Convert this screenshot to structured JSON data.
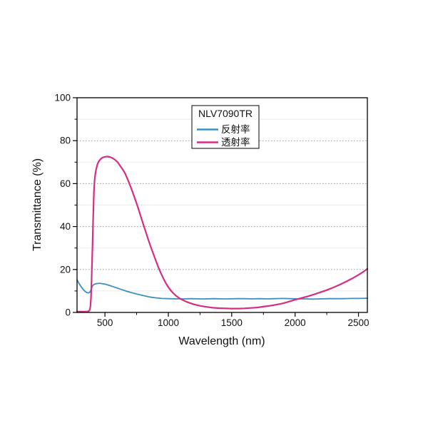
{
  "figure": {
    "background": "#ffffff",
    "frame_color": "#000000"
  },
  "chart_data": {
    "type": "line",
    "title": "NLV7090TR",
    "xlabel": "Wavelength (nm)",
    "ylabel": "Transmittance (%)",
    "xlim": [
      280,
      2570
    ],
    "ylim": [
      0,
      100
    ],
    "x_major_ticks": [
      500,
      1000,
      1500,
      2000,
      2500
    ],
    "x_major_tick_labels": [
      "500",
      "1000",
      "1500",
      "2000",
      "2500"
    ],
    "x_minor_ticks": [
      750,
      1250,
      1750,
      2250
    ],
    "y_major_ticks": [
      0,
      20,
      40,
      60,
      80,
      100
    ],
    "y_major_tick_labels": [
      "0",
      "20",
      "40",
      "60",
      "80",
      "100"
    ],
    "y_minor_ticks": [
      10,
      30,
      50,
      70,
      90
    ],
    "grid": {
      "horizontal_major": "dashed",
      "horizontal_major_color": "#9a9a9a",
      "horizontal_minor": "solid-faint",
      "horizontal_minor_color": "#ebebeb",
      "vertical": false
    },
    "legend": {
      "title": "NLV7090TR",
      "position": "upper-center",
      "border_color": "#000000",
      "entries": [
        {
          "label": "反射率",
          "color": "#3f90bd"
        },
        {
          "label": "透射率",
          "color": "#d62d80"
        }
      ]
    },
    "series": [
      {
        "name": "反射率",
        "color": "#3f90bd",
        "width": 1.8,
        "points": [
          [
            280,
            15.2
          ],
          [
            290,
            14.1
          ],
          [
            300,
            13.1
          ],
          [
            310,
            12.2
          ],
          [
            320,
            11.4
          ],
          [
            330,
            10.6
          ],
          [
            340,
            10.0
          ],
          [
            350,
            9.5
          ],
          [
            360,
            9.2
          ],
          [
            370,
            9.1
          ],
          [
            380,
            9.4
          ],
          [
            388,
            10.2
          ],
          [
            394,
            11.2
          ],
          [
            400,
            12.2
          ],
          [
            408,
            12.8
          ],
          [
            416,
            13.1
          ],
          [
            430,
            13.4
          ],
          [
            445,
            13.5
          ],
          [
            460,
            13.6
          ],
          [
            480,
            13.4
          ],
          [
            500,
            13.2
          ],
          [
            540,
            12.5
          ],
          [
            580,
            11.7
          ],
          [
            620,
            10.9
          ],
          [
            660,
            10.1
          ],
          [
            700,
            9.4
          ],
          [
            750,
            8.6
          ],
          [
            800,
            7.9
          ],
          [
            850,
            7.2
          ],
          [
            900,
            6.8
          ],
          [
            950,
            6.5
          ],
          [
            1000,
            6.4
          ],
          [
            1060,
            6.3
          ],
          [
            1120,
            6.3
          ],
          [
            1180,
            6.4
          ],
          [
            1240,
            6.3
          ],
          [
            1300,
            6.3
          ],
          [
            1360,
            6.4
          ],
          [
            1420,
            6.3
          ],
          [
            1480,
            6.3
          ],
          [
            1540,
            6.4
          ],
          [
            1600,
            6.4
          ],
          [
            1660,
            6.3
          ],
          [
            1720,
            6.4
          ],
          [
            1780,
            6.3
          ],
          [
            1840,
            6.4
          ],
          [
            1900,
            6.5
          ],
          [
            1960,
            6.4
          ],
          [
            2020,
            6.3
          ],
          [
            2080,
            6.3
          ],
          [
            2140,
            6.2
          ],
          [
            2200,
            6.3
          ],
          [
            2260,
            6.4
          ],
          [
            2320,
            6.4
          ],
          [
            2380,
            6.4
          ],
          [
            2440,
            6.5
          ],
          [
            2500,
            6.5
          ],
          [
            2570,
            6.6
          ]
        ]
      },
      {
        "name": "透射率",
        "color": "#d62d80",
        "width": 2.2,
        "points": [
          [
            280,
            0.4
          ],
          [
            300,
            0.4
          ],
          [
            320,
            0.4
          ],
          [
            340,
            0.4
          ],
          [
            355,
            0.4
          ],
          [
            365,
            0.5
          ],
          [
            375,
            0.7
          ],
          [
            382,
            1.5
          ],
          [
            386,
            3.0
          ],
          [
            390,
            7.0
          ],
          [
            393,
            12.0
          ],
          [
            396,
            18.0
          ],
          [
            399,
            24.0
          ],
          [
            402,
            31.0
          ],
          [
            405,
            38.0
          ],
          [
            408,
            45.0
          ],
          [
            411,
            52.0
          ],
          [
            414,
            57.0
          ],
          [
            418,
            61.0
          ],
          [
            423,
            64.0
          ],
          [
            430,
            66.5
          ],
          [
            440,
            68.8
          ],
          [
            450,
            70.2
          ],
          [
            465,
            71.4
          ],
          [
            480,
            72.1
          ],
          [
            500,
            72.5
          ],
          [
            520,
            72.6
          ],
          [
            540,
            72.4
          ],
          [
            560,
            71.9
          ],
          [
            580,
            71.1
          ],
          [
            600,
            70.0
          ],
          [
            620,
            68.3
          ],
          [
            640,
            66.6
          ],
          [
            660,
            64.7
          ],
          [
            680,
            61.9
          ],
          [
            700,
            59.0
          ],
          [
            720,
            55.8
          ],
          [
            740,
            52.4
          ],
          [
            760,
            49.0
          ],
          [
            780,
            45.2
          ],
          [
            800,
            41.5
          ],
          [
            820,
            37.9
          ],
          [
            840,
            34.3
          ],
          [
            860,
            30.8
          ],
          [
            880,
            27.6
          ],
          [
            900,
            24.4
          ],
          [
            920,
            21.3
          ],
          [
            940,
            18.5
          ],
          [
            960,
            15.9
          ],
          [
            980,
            13.7
          ],
          [
            1000,
            11.8
          ],
          [
            1020,
            10.2
          ],
          [
            1040,
            8.9
          ],
          [
            1060,
            7.8
          ],
          [
            1080,
            6.9
          ],
          [
            1100,
            6.2
          ],
          [
            1130,
            5.3
          ],
          [
            1160,
            4.6
          ],
          [
            1200,
            3.8
          ],
          [
            1250,
            3.1
          ],
          [
            1300,
            2.6
          ],
          [
            1350,
            2.2
          ],
          [
            1400,
            2.0
          ],
          [
            1450,
            1.9
          ],
          [
            1500,
            1.8
          ],
          [
            1550,
            1.8
          ],
          [
            1600,
            1.9
          ],
          [
            1650,
            2.1
          ],
          [
            1700,
            2.3
          ],
          [
            1750,
            2.7
          ],
          [
            1800,
            3.1
          ],
          [
            1850,
            3.6
          ],
          [
            1900,
            4.2
          ],
          [
            1950,
            5.0
          ],
          [
            2000,
            5.9
          ],
          [
            2050,
            6.7
          ],
          [
            2100,
            7.5
          ],
          [
            2150,
            8.4
          ],
          [
            2200,
            9.4
          ],
          [
            2250,
            10.4
          ],
          [
            2300,
            11.6
          ],
          [
            2350,
            12.9
          ],
          [
            2400,
            14.3
          ],
          [
            2450,
            15.8
          ],
          [
            2500,
            17.5
          ],
          [
            2540,
            19.0
          ],
          [
            2570,
            20.3
          ]
        ]
      }
    ]
  }
}
